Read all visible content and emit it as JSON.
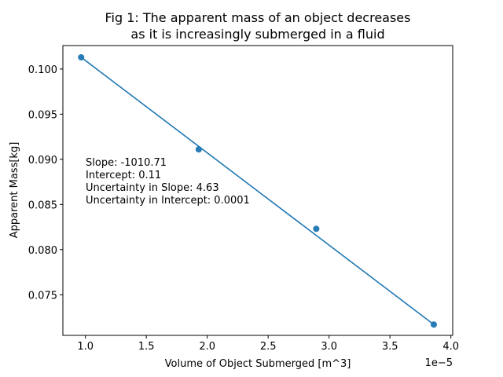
{
  "chart_data": {
    "type": "scatter",
    "title_lines": [
      "Fig 1: The apparent mass of an object decreases",
      "as it is increasingly submerged in a fluid"
    ],
    "xlabel": "Volume of Object Submerged [m^3]",
    "ylabel": "Apparent Mass[kg]",
    "x_offset_label": "1e−5",
    "x_ticks": [
      1.0,
      1.5,
      2.0,
      2.5,
      3.0,
      3.5,
      4.0
    ],
    "x_tick_labels": [
      "1.0",
      "1.5",
      "2.0",
      "2.5",
      "3.0",
      "3.5",
      "4.0"
    ],
    "y_ticks": [
      0.075,
      0.08,
      0.085,
      0.09,
      0.095,
      0.1
    ],
    "y_tick_labels": [
      "0.075",
      "0.080",
      "0.085",
      "0.090",
      "0.095",
      "0.100"
    ],
    "xlim": [
      0.815,
      4.015
    ],
    "ylim": [
      0.0705,
      0.1026
    ],
    "grid": false,
    "series": [
      {
        "type": "scatter",
        "color": "#1f77b4",
        "x": [
          0.965,
          1.93,
          2.895,
          3.86
        ],
        "y": [
          0.1013,
          0.0911,
          0.0823,
          0.0717
        ]
      },
      {
        "type": "line",
        "color": "#1f77b4",
        "x": [
          0.965,
          3.86
        ],
        "y": [
          0.1013,
          0.0717
        ]
      }
    ],
    "annotation_lines": [
      "Slope: -1010.71",
      "Intercept: 0.11",
      "Uncertainty in Slope: 4.63",
      "Uncertainty in Intercept: 0.0001"
    ]
  }
}
